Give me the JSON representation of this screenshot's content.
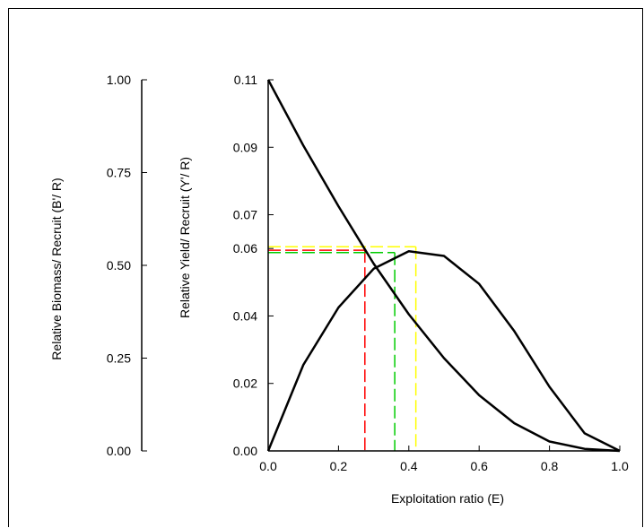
{
  "chart_data": {
    "type": "line",
    "xlabel": "Exploitation ratio (E)",
    "ylabel": "Relative Yield/ Recruit (Y'/ R)",
    "ylabel2": "Relative Biomass/ Recruit (B'/ R)",
    "xlim": [
      0,
      1
    ],
    "ylim": [
      0,
      0.11
    ],
    "ylim2": [
      0,
      1
    ],
    "x_ticks": [
      "0.0",
      "0.2",
      "0.4",
      "0.6",
      "0.8",
      "1.0"
    ],
    "y_ticks": [
      "0.00",
      "0.02",
      "0.04",
      "0.06",
      "0.07",
      "0.09",
      "0.11"
    ],
    "y_tick_values": [
      0,
      0.02,
      0.04,
      0.06,
      0.07,
      0.09,
      0.11
    ],
    "y2_ticks": [
      "0.00",
      "0.25",
      "0.50",
      "0.75",
      "1.00"
    ],
    "y2_tick_values": [
      0,
      0.25,
      0.5,
      0.75,
      1
    ],
    "y2_highlight_tick": "0.50",
    "highlight_color": "#ff0000",
    "series": [
      {
        "axis": "left",
        "color": "#000000",
        "x": [
          0,
          0.1,
          0.2,
          0.3,
          0.4,
          0.5,
          0.6,
          0.7,
          0.8,
          0.9,
          1.0
        ],
        "y": [
          0,
          0.0255,
          0.0425,
          0.054,
          0.0592,
          0.0578,
          0.0495,
          0.0355,
          0.019,
          0.0052,
          0
        ]
      },
      {
        "axis": "left",
        "color": "#000000",
        "x": [
          0,
          0.1,
          0.2,
          0.3,
          0.4,
          0.5,
          0.6,
          0.7,
          0.8,
          0.9,
          1.0
        ],
        "y": [
          0.11,
          0.0905,
          0.0725,
          0.0555,
          0.0405,
          0.0275,
          0.0165,
          0.0082,
          0.0028,
          0.0006,
          0
        ]
      }
    ],
    "reference_lines": [
      {
        "color": "#ff0000",
        "x": 0.275,
        "y": 0.0595
      },
      {
        "color": "#00cc00",
        "x": 0.36,
        "y": 0.0588
      },
      {
        "color": "#ffff00",
        "x": 0.42,
        "y": 0.0605
      }
    ]
  }
}
